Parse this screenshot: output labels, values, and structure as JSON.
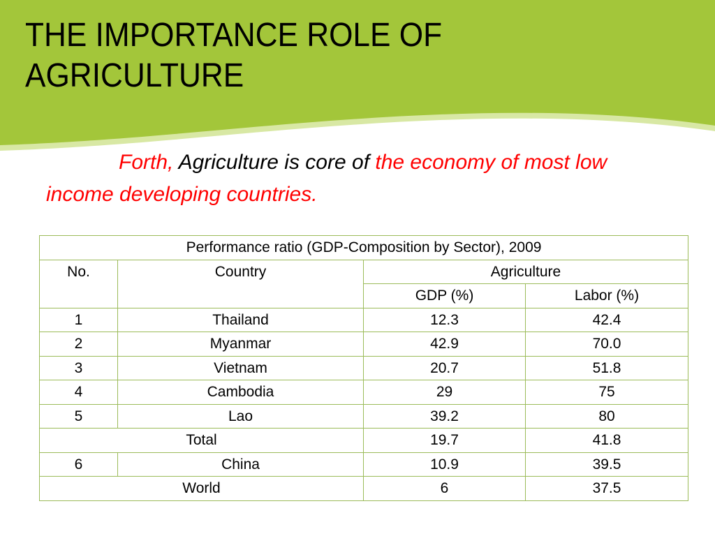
{
  "slide": {
    "title_lines": [
      "THE IMPORTANCE ROLE OF",
      "AGRICULTURE"
    ],
    "subtitle": {
      "part1": "Forth,",
      "part2": " Agriculture is core of ",
      "part3": "the economy of most low income developing countries."
    },
    "colors": {
      "banner": "#a3c63a",
      "accent_red": "#ff0000",
      "table_border": "#9bbb59"
    }
  },
  "table": {
    "caption": "Performance ratio (GDP-Composition by Sector), 2009",
    "headers": {
      "no": "No.",
      "country": "Country",
      "agriculture": "Agriculture",
      "gdp": "GDP (%)",
      "labor": "Labor (%)"
    },
    "rows": [
      {
        "no": "1",
        "country": "Thailand",
        "gdp": "12.3",
        "labor": "42.4"
      },
      {
        "no": "2",
        "country": "Myanmar",
        "gdp": "42.9",
        "labor": "70.0"
      },
      {
        "no": "3",
        "country": "Vietnam",
        "gdp": "20.7",
        "labor": "51.8"
      },
      {
        "no": "4",
        "country": "Cambodia",
        "gdp": "29",
        "labor": "75"
      },
      {
        "no": "5",
        "country": "Lao",
        "gdp": "39.2",
        "labor": "80"
      }
    ],
    "total": {
      "label": "Total",
      "gdp": "19.7",
      "labor": "41.8"
    },
    "china": {
      "no": "6",
      "country": "China",
      "gdp": "10.9",
      "labor": "39.5"
    },
    "world": {
      "label": "World",
      "gdp": "6",
      "labor": "37.5"
    }
  }
}
